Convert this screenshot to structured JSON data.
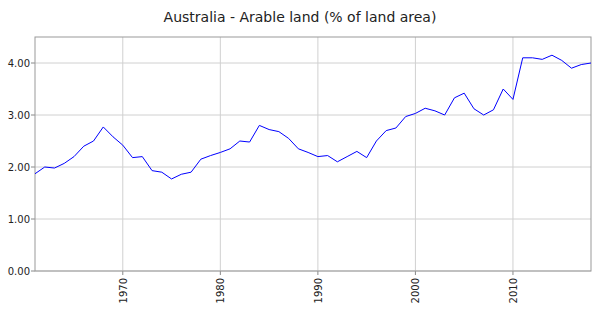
{
  "chart_data": {
    "type": "line",
    "title": "Australia - Arable land (% of land area)",
    "x": [
      1961,
      1962,
      1963,
      1964,
      1965,
      1966,
      1967,
      1968,
      1969,
      1970,
      1971,
      1972,
      1973,
      1974,
      1975,
      1976,
      1977,
      1978,
      1979,
      1980,
      1981,
      1982,
      1983,
      1984,
      1985,
      1986,
      1987,
      1988,
      1989,
      1990,
      1991,
      1992,
      1993,
      1994,
      1995,
      1996,
      1997,
      1998,
      1999,
      2000,
      2001,
      2002,
      2003,
      2004,
      2005,
      2006,
      2007,
      2008,
      2009,
      2010,
      2011,
      2012,
      2013,
      2014,
      2015,
      2016,
      2017,
      2018
    ],
    "values": [
      1.87,
      2.0,
      1.98,
      2.07,
      2.2,
      2.4,
      2.5,
      2.77,
      2.58,
      2.42,
      2.18,
      2.2,
      1.93,
      1.9,
      1.77,
      1.86,
      1.9,
      2.15,
      2.22,
      2.28,
      2.35,
      2.5,
      2.48,
      2.8,
      2.72,
      2.68,
      2.55,
      2.35,
      2.28,
      2.2,
      2.22,
      2.1,
      2.2,
      2.3,
      2.18,
      2.5,
      2.7,
      2.75,
      2.97,
      3.03,
      3.13,
      3.08,
      3.0,
      3.33,
      3.42,
      3.12,
      3.0,
      3.1,
      3.5,
      3.3,
      4.1,
      4.1,
      4.07,
      4.15,
      4.05,
      3.9,
      3.97,
      4.0
    ],
    "color": "#0000ff",
    "xlim": [
      1961,
      2018
    ],
    "xticks": [
      1970,
      1980,
      1990,
      2000,
      2010
    ],
    "ylim": [
      0,
      4.5
    ],
    "yticks": [
      {
        "value": 0,
        "label": "0.00"
      },
      {
        "value": 1,
        "label": "1.00"
      },
      {
        "value": 2,
        "label": "2.00"
      },
      {
        "value": 3,
        "label": "3.00"
      },
      {
        "value": 4,
        "label": "4.00"
      }
    ],
    "grid": true
  }
}
